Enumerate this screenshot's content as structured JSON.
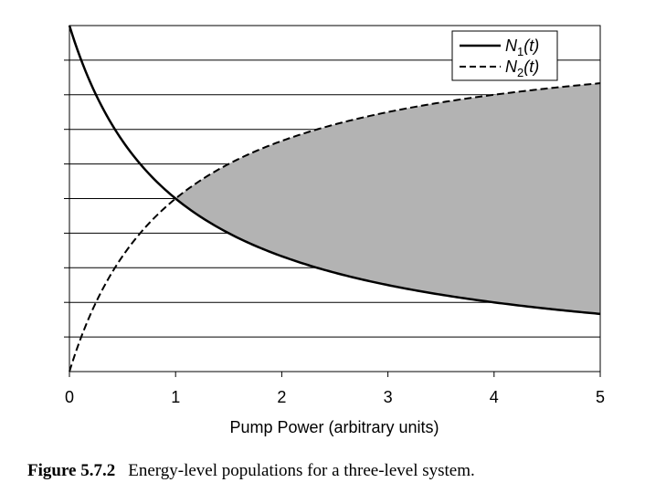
{
  "chart_data": {
    "type": "line",
    "title": "",
    "xlabel": "Pump Power (arbitrary units)",
    "ylabel": "",
    "xlim": [
      0,
      5
    ],
    "ylim": [
      0,
      1
    ],
    "x_ticks": [
      "0",
      "1",
      "2",
      "3",
      "4",
      "5"
    ],
    "y_gridlines": [
      0.1,
      0.2,
      0.3,
      0.4,
      0.5,
      0.6,
      0.7,
      0.8,
      0.9
    ],
    "grid": "horizontal",
    "legend_position": "top-right",
    "series": [
      {
        "name": "N1(t)",
        "legend_main": "N",
        "legend_sub": "1",
        "legend_arg": "(t)",
        "style": "solid",
        "x": [
          0,
          0.25,
          0.5,
          0.75,
          1,
          1.5,
          2,
          2.5,
          3,
          3.5,
          4,
          4.5,
          5
        ],
        "values": [
          1.0,
          0.8,
          0.667,
          0.571,
          0.5,
          0.4,
          0.333,
          0.286,
          0.25,
          0.222,
          0.2,
          0.182,
          0.167
        ]
      },
      {
        "name": "N2(t)",
        "legend_main": "N",
        "legend_sub": "2",
        "legend_arg": "(t)",
        "style": "dashed",
        "x": [
          0,
          0.25,
          0.5,
          0.75,
          1,
          1.5,
          2,
          2.5,
          3,
          3.5,
          4,
          4.5,
          5
        ],
        "values": [
          0.0,
          0.2,
          0.333,
          0.429,
          0.5,
          0.6,
          0.667,
          0.714,
          0.75,
          0.778,
          0.8,
          0.818,
          0.833
        ]
      }
    ],
    "shaded_region": {
      "between": [
        "N2(t)",
        "N1(t)"
      ],
      "x_from": 1,
      "x_to": 5,
      "color": "#b3b3b3"
    }
  },
  "caption": {
    "label": "Figure 5.7.2",
    "text": "Energy-level populations for a three-level system."
  }
}
